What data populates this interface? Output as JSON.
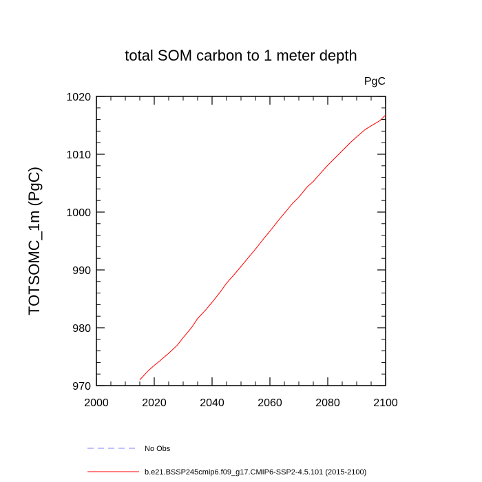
{
  "chart_data": {
    "type": "line",
    "title": "total SOM carbon to 1 meter depth",
    "units": "PgC",
    "xlabel": "",
    "ylabel": "TOTSOMC_1m  (PgC)",
    "xlim": [
      2000,
      2100
    ],
    "ylim": [
      970,
      1020
    ],
    "x_ticks": [
      2000,
      2020,
      2040,
      2060,
      2080,
      2100
    ],
    "y_ticks": [
      970,
      980,
      990,
      1000,
      1010,
      1020
    ],
    "grid": false,
    "legend_position": "bottom",
    "series": [
      {
        "name": "No Obs",
        "color": "#8080ff",
        "style": "dashed",
        "x": [],
        "y": []
      },
      {
        "name": "b.e21.BSSP245cmip6.f09_g17.CMIP6-SSP2-4.5.101 (2015-2100)",
        "color": "#ff0000",
        "style": "solid",
        "x": [
          2015,
          2018,
          2020,
          2022,
          2025,
          2028,
          2030,
          2033,
          2035,
          2038,
          2040,
          2043,
          2045,
          2048,
          2050,
          2053,
          2055,
          2058,
          2060,
          2063,
          2065,
          2068,
          2070,
          2073,
          2075,
          2078,
          2080,
          2083,
          2085,
          2088,
          2090,
          2093,
          2095,
          2098,
          2100
        ],
        "y": [
          971.0,
          972.6,
          973.5,
          974.3,
          975.6,
          977.0,
          978.3,
          980.1,
          981.6,
          983.2,
          984.4,
          986.3,
          987.7,
          989.4,
          990.6,
          992.4,
          993.6,
          995.5,
          996.7,
          998.6,
          999.8,
          1001.6,
          1002.6,
          1004.4,
          1005.3,
          1007.0,
          1008.1,
          1009.6,
          1010.6,
          1012.1,
          1013.0,
          1014.3,
          1014.9,
          1015.8,
          1016.8
        ]
      }
    ]
  }
}
